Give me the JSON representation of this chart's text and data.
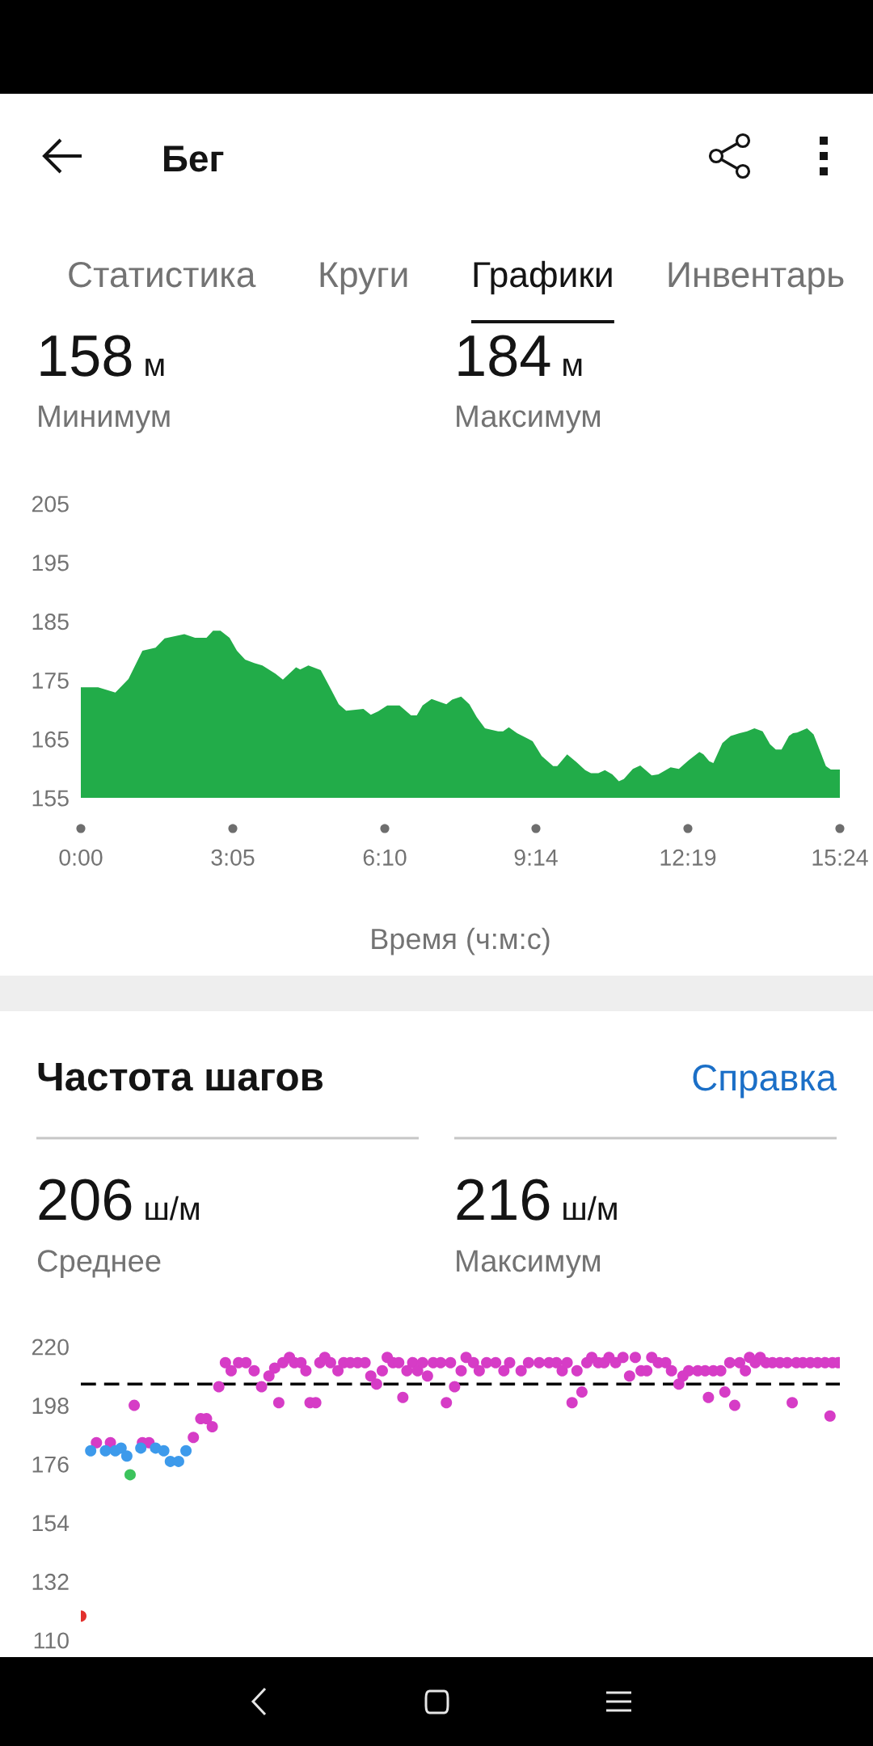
{
  "chart_data": [
    {
      "type": "area",
      "annotations": [
        "Бег",
        "Статистика",
        "Круги",
        "Графики",
        "Инвентарь",
        "158 м",
        "Минимум",
        "184 м",
        "Максимум"
      ],
      "xlabel": "Время (ч:м:с)",
      "xlim": [
        0,
        924
      ],
      "xticks": [
        {
          "value": 0,
          "label": "0:00"
        },
        {
          "value": 185,
          "label": "3:05"
        },
        {
          "value": 370,
          "label": "6:10"
        },
        {
          "value": 554,
          "label": "9:14"
        },
        {
          "value": 739,
          "label": "12:19"
        },
        {
          "value": 924,
          "label": "15:24"
        }
      ],
      "ylim": [
        155,
        205
      ],
      "yticks": [
        155,
        165,
        175,
        185,
        195,
        205
      ],
      "color": "#22ac49",
      "x": [
        0,
        21,
        42,
        58,
        75,
        91,
        102,
        126,
        139,
        153,
        161,
        170,
        181,
        190,
        200,
        211,
        221,
        237,
        246,
        262,
        267,
        277,
        292,
        302,
        314,
        323,
        344,
        353,
        362,
        373,
        388,
        402,
        409,
        416,
        427,
        445,
        452,
        463,
        473,
        482,
        492,
        508,
        514,
        521,
        531,
        545,
        550,
        561,
        575,
        580,
        592,
        603,
        614,
        621,
        630,
        638,
        647,
        655,
        661,
        672,
        681,
        695,
        703,
        718,
        728,
        740,
        753,
        758,
        765,
        770,
        781,
        791,
        802,
        811,
        820,
        830,
        839,
        846,
        853,
        862,
        867,
        872,
        884,
        892,
        907,
        913,
        924
      ],
      "values": [
        173.8,
        173.8,
        172.9,
        175.2,
        180.0,
        180.5,
        182.1,
        182.8,
        182.2,
        182.2,
        183.4,
        183.4,
        182.2,
        180.0,
        178.5,
        177.9,
        177.5,
        176.1,
        175.1,
        177.2,
        176.8,
        177.5,
        176.7,
        174.1,
        170.9,
        169.8,
        170.1,
        169.1,
        169.7,
        170.7,
        170.7,
        169.0,
        169.0,
        170.7,
        171.8,
        170.9,
        171.7,
        172.2,
        170.9,
        168.7,
        166.8,
        166.3,
        166.3,
        167.0,
        166.0,
        165.0,
        164.6,
        162.1,
        160.4,
        160.4,
        162.4,
        161.1,
        159.7,
        159.2,
        159.2,
        159.7,
        159.0,
        157.8,
        158.2,
        159.9,
        160.5,
        158.8,
        159.0,
        160.2,
        159.9,
        161.4,
        162.8,
        162.4,
        161.2,
        160.9,
        164.3,
        165.5,
        166.0,
        166.3,
        166.8,
        166.3,
        164.1,
        163.2,
        163.2,
        165.5,
        166.0,
        166.1,
        166.8,
        165.8,
        160.4,
        159.8,
        159.8
      ]
    },
    {
      "type": "scatter",
      "title": "Частота шагов",
      "annotations": [
        "Справка",
        "206 ш/м",
        "Среднее",
        "216 ш/м",
        "Максимум"
      ],
      "xlim": [
        0,
        924
      ],
      "ylim": [
        110,
        220
      ],
      "yticks": [
        110,
        132,
        154,
        176,
        198,
        220
      ],
      "tick_labels": "y",
      "marker": "circle",
      "ref_lines": [
        {
          "axis": "y",
          "value": 206,
          "color": "#000000",
          "line_style": "dashed"
        }
      ],
      "series": [
        {
          "color": "#d63cc6",
          "x": [
            19,
            36,
            65,
            75,
            83,
            137,
            146,
            153,
            160,
            168,
            176,
            183,
            192,
            201,
            211,
            220,
            229,
            236,
            241,
            246,
            254,
            260,
            268,
            274,
            279,
            286,
            291,
            297,
            304,
            313,
            320,
            328,
            337,
            346,
            353,
            360,
            367,
            373,
            380,
            387,
            392,
            397,
            404,
            410,
            416,
            422,
            429,
            438,
            445,
            450,
            455,
            463,
            469,
            478,
            485,
            494,
            505,
            515,
            522,
            536,
            545,
            558,
            570,
            579,
            586,
            592,
            598,
            604,
            610,
            616,
            622,
            630,
            637,
            643,
            651,
            660,
            668,
            675,
            682,
            689,
            695,
            703,
            712,
            719,
            728,
            733,
            740,
            751,
            760,
            764,
            770,
            779,
            784,
            790,
            796,
            802,
            809,
            814,
            821,
            827,
            834,
            842,
            851,
            860,
            866,
            871,
            879,
            888,
            897,
            906,
            912,
            915,
            922
          ],
          "values": [
            184,
            184,
            198,
            184,
            184,
            186,
            193,
            193,
            190,
            205,
            214,
            211,
            214,
            214,
            211,
            205,
            209,
            212,
            199,
            214,
            216,
            214,
            214,
            211,
            199,
            199,
            214,
            216,
            214,
            211,
            214,
            214,
            214,
            214,
            209,
            206,
            211,
            216,
            214,
            214,
            201,
            211,
            214,
            211,
            214,
            209,
            214,
            214,
            199,
            214,
            205,
            211,
            216,
            214,
            211,
            214,
            214,
            211,
            214,
            211,
            214,
            214,
            214,
            214,
            211,
            214,
            199,
            211,
            203,
            214,
            216,
            214,
            214,
            216,
            214,
            216,
            209,
            216,
            211,
            211,
            216,
            214,
            214,
            211,
            206,
            209,
            211,
            211,
            211,
            201,
            211,
            211,
            203,
            214,
            198,
            214,
            211,
            216,
            214,
            216,
            214,
            214,
            214,
            214,
            199,
            214,
            214,
            214,
            214,
            214,
            194,
            214,
            214
          ]
        },
        {
          "color": "#3d9aeb",
          "x": [
            12,
            30,
            42,
            49,
            56,
            73,
            91,
            101,
            109,
            119,
            128
          ],
          "values": [
            181,
            181,
            181,
            182,
            179,
            182,
            182,
            181,
            177,
            177,
            181
          ]
        },
        {
          "color": "#3cc35c",
          "x": [
            60
          ],
          "values": [
            172
          ]
        },
        {
          "color": "#e2302d",
          "x": [
            0
          ],
          "values": [
            119
          ]
        }
      ]
    }
  ]
}
